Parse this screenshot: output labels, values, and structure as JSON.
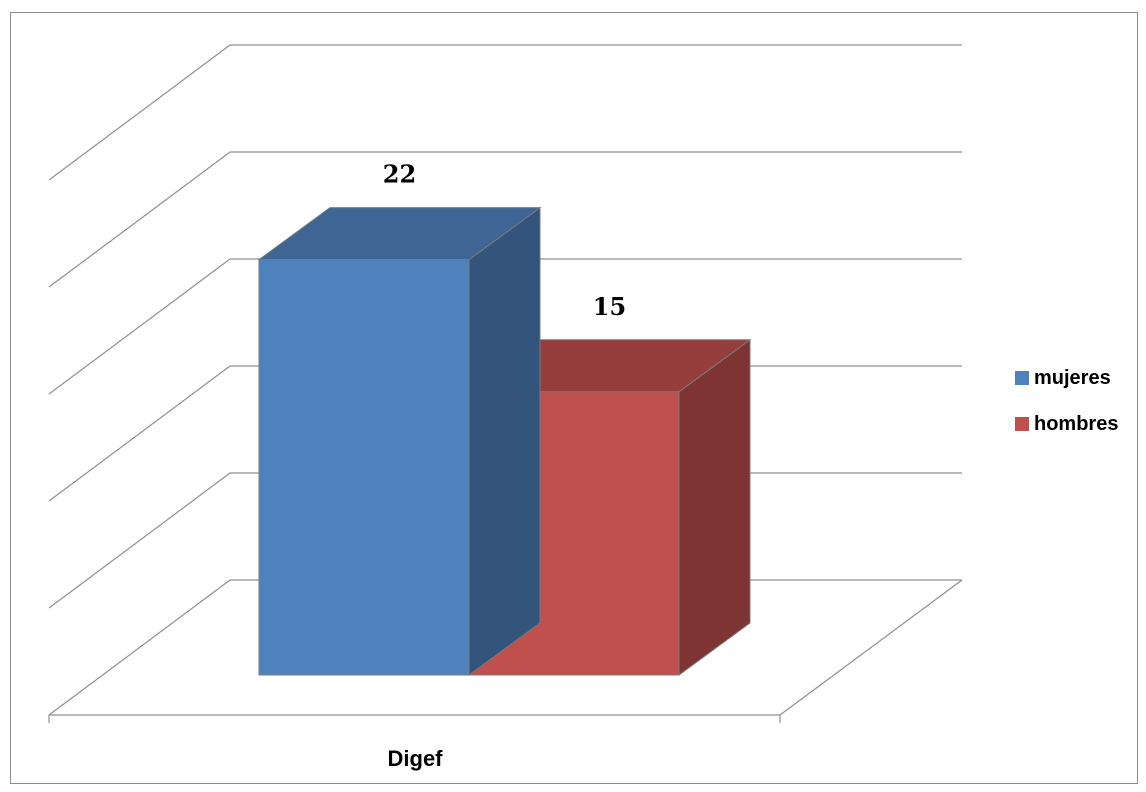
{
  "chart_data": {
    "type": "bar",
    "style": "3d-clustered-column",
    "categories": [
      "Digef"
    ],
    "series": [
      {
        "name": "mujeres",
        "values": [
          22
        ],
        "color": "#4F81BD"
      },
      {
        "name": "hombres",
        "values": [
          15
        ],
        "color": "#C0504D"
      }
    ],
    "ylim": [
      0,
      25
    ],
    "ytick_step": 5,
    "grid": true,
    "y_tick_labels_shown": false,
    "legend": "right",
    "data_labels": true
  }
}
